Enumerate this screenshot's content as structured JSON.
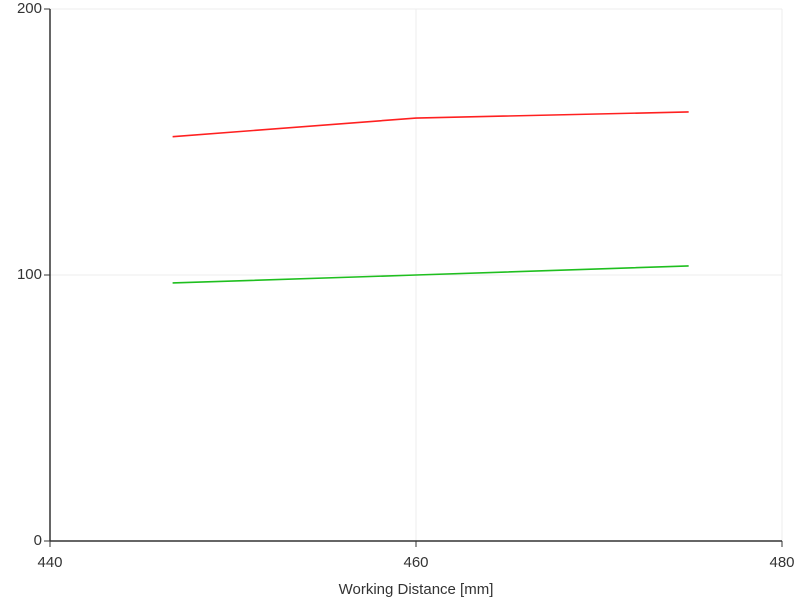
{
  "chart_data": {
    "type": "line",
    "x_label": "Working Distance [mm]",
    "xlim": [
      440,
      480
    ],
    "xticks": [
      440,
      460,
      480
    ],
    "ylim": [
      0,
      200
    ],
    "yticks": [
      0,
      100,
      200
    ],
    "grid": true,
    "series": [
      {
        "color": "#ff2020",
        "x": [
          446.7,
          460,
          474.9
        ],
        "values": [
          152,
          159,
          161.3
        ]
      },
      {
        "color": "#1fbf1f",
        "x": [
          446.7,
          460,
          474.9
        ],
        "values": [
          97,
          100,
          103.4
        ]
      }
    ]
  }
}
